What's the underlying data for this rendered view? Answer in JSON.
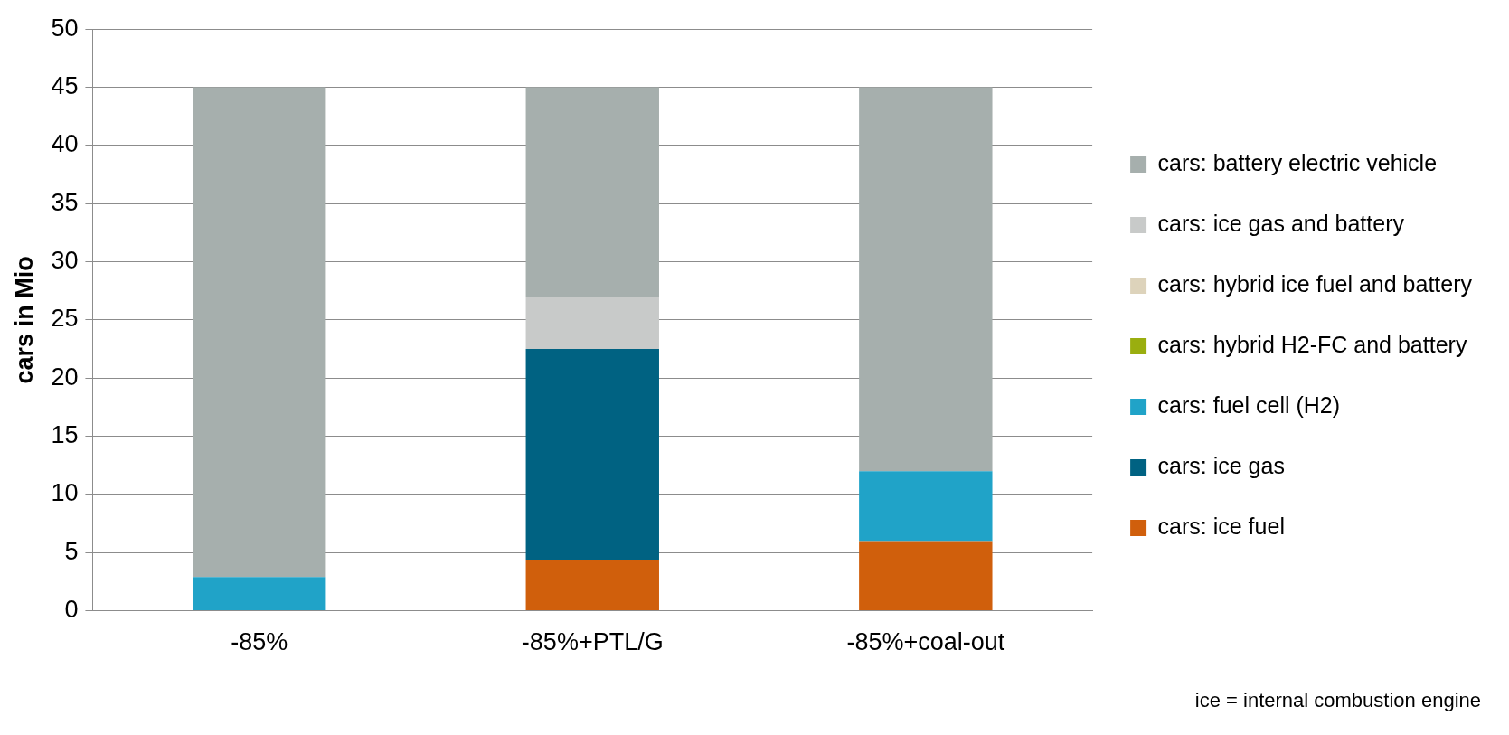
{
  "chart_data": {
    "type": "bar",
    "stacked": true,
    "ylabel": "cars in Mio",
    "categories": [
      "-85%",
      "-85%+PTL/G",
      "-85%+coal-out"
    ],
    "series": [
      {
        "name": "cars: ice fuel",
        "color": "#d05f0c",
        "values": [
          0,
          4.4,
          6
        ]
      },
      {
        "name": "cars: ice gas",
        "color": "#006282",
        "values": [
          0,
          18.1,
          0
        ]
      },
      {
        "name": "cars: fuel cell (H2)",
        "color": "#20a3c8",
        "values": [
          2.9,
          0,
          6
        ]
      },
      {
        "name": "cars: hybrid H2-FC and battery",
        "color": "#9aae0f",
        "values": [
          0,
          0,
          0
        ]
      },
      {
        "name": "cars: hybrid ice fuel and battery",
        "color": "#ddd3bb",
        "values": [
          0,
          0,
          0
        ]
      },
      {
        "name": "cars: ice gas and battery",
        "color": "#c8cac9",
        "values": [
          0,
          4.5,
          0
        ]
      },
      {
        "name": "cars: battery electric vehicle",
        "color": "#a6afad",
        "values": [
          42.1,
          18,
          33
        ]
      }
    ],
    "ylim": [
      0,
      50
    ],
    "yticks": [
      0,
      5,
      10,
      15,
      20,
      25,
      30,
      35,
      40,
      45,
      50
    ],
    "grid": "y",
    "legend": "right",
    "annotations": [
      "ice = internal combustion engine"
    ]
  }
}
